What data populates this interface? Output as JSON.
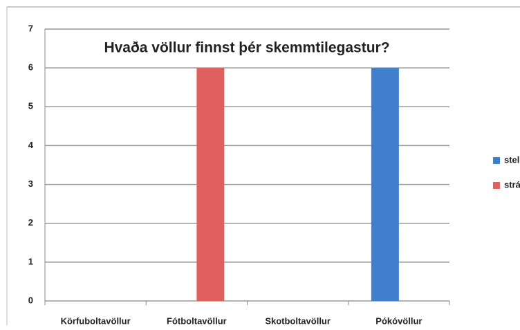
{
  "chart_data": {
    "type": "bar",
    "title": "Hvaða völlur finnst þér skemmtilegastur?",
    "categories": [
      "Körfuboltavöllur",
      "Fótboltavöllur",
      "Skotboltavöllur",
      "Pókóvöllur"
    ],
    "series": [
      {
        "name": "stelpur",
        "color": "#3f7fcb",
        "values": [
          0,
          0,
          0,
          6
        ]
      },
      {
        "name": "strákar",
        "color": "#e0605e",
        "values": [
          0,
          6,
          0,
          0
        ]
      }
    ],
    "ylim": [
      0,
      7
    ],
    "yticks": [
      0,
      1,
      2,
      3,
      4,
      5,
      6,
      7
    ],
    "grid": true,
    "legend": "right"
  }
}
